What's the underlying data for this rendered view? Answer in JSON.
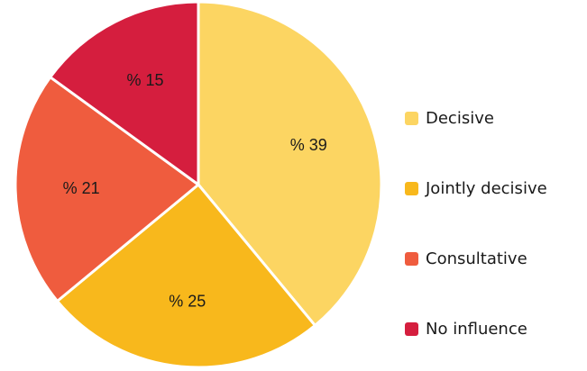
{
  "chart_data": {
    "type": "pie",
    "categories": [
      "Decisive",
      "Jointly decisive",
      "Consultative",
      "No influence"
    ],
    "values": [
      39,
      25,
      21,
      15
    ],
    "labels": [
      "% 39",
      "% 25",
      "% 21",
      "% 15"
    ],
    "colors": [
      "#fcd562",
      "#f8b81c",
      "#ef5c3e",
      "#d51e3e"
    ],
    "legend_position": "right",
    "start": "top",
    "direction": "clockwise"
  }
}
